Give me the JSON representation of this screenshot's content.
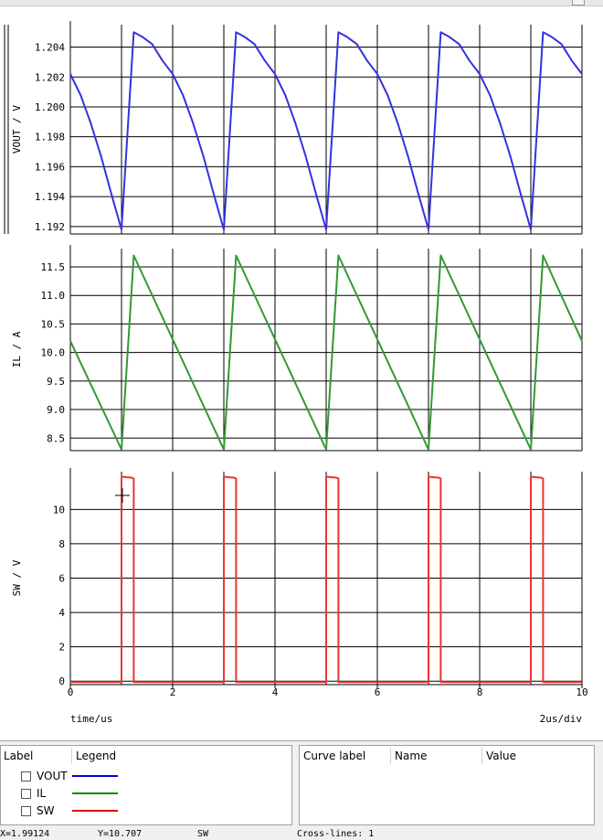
{
  "chart_data": [
    {
      "type": "line",
      "ylabel": "VOUT / V",
      "ylim": [
        1.1915,
        1.2055
      ],
      "yticks": [
        "1.204",
        "1.202",
        "1.200",
        "1.198",
        "1.196",
        "1.194",
        "1.192"
      ],
      "ytick_values": [
        1.204,
        1.202,
        1.2,
        1.198,
        1.196,
        1.194,
        1.192
      ],
      "series": [
        {
          "name": "VOUT",
          "color": "#3333dd",
          "x": [
            0,
            0.2,
            0.4,
            0.6,
            0.8,
            1.0,
            1.24,
            1.4,
            1.6,
            1.8,
            2.0,
            2.2,
            2.4,
            2.6,
            2.8,
            3.0,
            3.24,
            3.4,
            3.6,
            3.8,
            4.0,
            4.2,
            4.4,
            4.6,
            4.8,
            5.0,
            5.24,
            5.4,
            5.6,
            5.8,
            6.0,
            6.2,
            6.4,
            6.6,
            6.8,
            7.0,
            7.24,
            7.4,
            7.6,
            7.8,
            8.0,
            8.2,
            8.4,
            8.6,
            8.8,
            9.0,
            9.24,
            9.4,
            9.6,
            9.8,
            10.0
          ],
          "y": [
            1.2022,
            1.2008,
            1.1989,
            1.1967,
            1.1942,
            1.1918,
            1.205,
            1.2047,
            1.2042,
            1.2031,
            1.2022,
            1.2008,
            1.1989,
            1.1967,
            1.1942,
            1.1918,
            1.205,
            1.2047,
            1.2042,
            1.2031,
            1.2022,
            1.2008,
            1.1989,
            1.1967,
            1.1942,
            1.1918,
            1.205,
            1.2047,
            1.2042,
            1.2031,
            1.2022,
            1.2008,
            1.1989,
            1.1967,
            1.1942,
            1.1918,
            1.205,
            1.2047,
            1.2042,
            1.2031,
            1.2022,
            1.2008,
            1.1989,
            1.1967,
            1.1942,
            1.1918,
            1.205,
            1.2047,
            1.2042,
            1.2031,
            1.2022
          ]
        }
      ]
    },
    {
      "type": "line",
      "ylabel": "IL / A",
      "ylim": [
        8.28,
        11.82
      ],
      "yticks": [
        "11.5",
        "11.0",
        "10.5",
        "10.0",
        "9.5",
        "9.0",
        "8.5"
      ],
      "ytick_values": [
        11.5,
        11.0,
        10.5,
        10.0,
        9.5,
        9.0,
        8.5
      ],
      "series": [
        {
          "name": "IL",
          "color": "#339933",
          "x": [
            0,
            1.0,
            1.24,
            3.0,
            3.24,
            5.0,
            5.24,
            7.0,
            7.24,
            9.0,
            9.24,
            10.0
          ],
          "y": [
            10.2,
            8.3,
            11.7,
            8.3,
            11.7,
            8.3,
            11.7,
            8.3,
            11.7,
            8.3,
            11.7,
            10.2
          ]
        }
      ]
    },
    {
      "type": "line",
      "ylabel": "SW / V",
      "ylim": [
        -0.2,
        12.2
      ],
      "yticks": [
        "10",
        "8",
        "6",
        "4",
        "2",
        "0"
      ],
      "ytick_values": [
        10,
        8,
        6,
        4,
        2,
        0
      ],
      "xlabel": "time/us",
      "xscale_label": "2us/div",
      "xticks": [
        "0",
        "2",
        "4",
        "6",
        "8",
        "10"
      ],
      "xtick_values": [
        0,
        2,
        4,
        6,
        8,
        10
      ],
      "xlim": [
        0,
        10
      ],
      "series": [
        {
          "name": "SW",
          "color": "#ee3333",
          "x": [
            0,
            1.0,
            1.0,
            1.02,
            1.2,
            1.24,
            1.24,
            3.0,
            3.0,
            3.02,
            3.2,
            3.24,
            3.24,
            5.0,
            5.0,
            5.02,
            5.2,
            5.24,
            5.24,
            7.0,
            7.0,
            7.02,
            7.2,
            7.24,
            7.24,
            9.0,
            9.0,
            9.02,
            9.2,
            9.24,
            9.24,
            10.0
          ],
          "y": [
            -0.05,
            -0.05,
            11.9,
            11.9,
            11.85,
            11.8,
            -0.05,
            -0.05,
            11.9,
            11.9,
            11.85,
            11.8,
            -0.05,
            -0.05,
            11.9,
            11.9,
            11.85,
            11.8,
            -0.05,
            -0.05,
            11.9,
            11.9,
            11.85,
            11.8,
            -0.05,
            -0.05,
            11.9,
            11.9,
            11.85,
            11.8,
            -0.05,
            -0.05
          ]
        }
      ]
    }
  ],
  "legend_panel": {
    "header_label": "Label",
    "header_legend": "Legend",
    "items": [
      {
        "label": "VOUT",
        "color": "#0000dd"
      },
      {
        "label": "IL",
        "color": "#008800"
      },
      {
        "label": "SW",
        "color": "#dd0000"
      }
    ]
  },
  "curve_panel": {
    "col_curve_label": "Curve label",
    "col_name": "Name",
    "col_value": "Value"
  },
  "status_bar": {
    "x_readout": "X=1.99124",
    "y_readout": "Y=10.707",
    "signal": "SW",
    "cursor_mode": "Cross-lines: 1"
  }
}
